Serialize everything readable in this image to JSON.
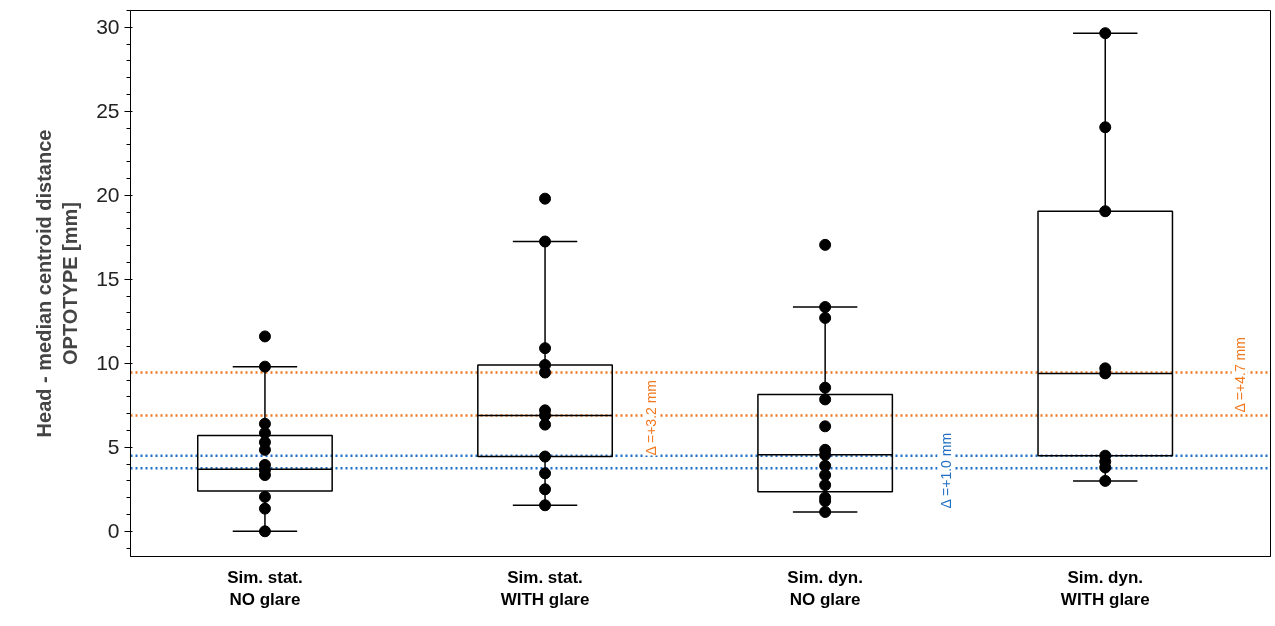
{
  "chart_data": {
    "type": "box",
    "ylabel": "Head - median centroid distance\nOPTOTYPE [mm]",
    "categories": [
      "Sim. stat.\nNO glare",
      "Sim. stat.\nWITH glare",
      "Sim. dyn.\nNO glare",
      "Sim. dyn.\nWITH glare"
    ],
    "boxes": [
      {
        "low": 0,
        "q1": 2.4,
        "median": 3.7,
        "q3": 5.7,
        "high": 9.8,
        "outliers": [
          11.6
        ]
      },
      {
        "low": 1.55,
        "q1": 4.45,
        "median": 6.9,
        "q3": 9.9,
        "high": 17.25,
        "outliers": [
          19.8
        ]
      },
      {
        "low": 1.15,
        "q1": 2.35,
        "median": 4.55,
        "q3": 8.15,
        "high": 13.35,
        "outliers": [
          17.05
        ]
      },
      {
        "low": 3.0,
        "q1": 4.5,
        "median": 9.4,
        "q3": 19.05,
        "high": 29.65
      }
    ],
    "series": [
      {
        "type": "scatter",
        "color": "#000000",
        "x": [
          "Sim. stat.\nNO glare",
          "Sim. stat.\nNO glare",
          "Sim. stat.\nNO glare",
          "Sim. stat.\nNO glare",
          "Sim. stat.\nNO glare",
          "Sim. stat.\nNO glare",
          "Sim. stat.\nNO glare",
          "Sim. stat.\nNO glare",
          "Sim. stat.\nNO glare",
          "Sim. stat.\nNO glare",
          "Sim. stat.\nNO glare"
        ],
        "values": [
          9.8,
          6.4,
          5.85,
          5.3,
          4.85,
          3.95,
          3.65,
          3.35,
          2.05,
          1.35,
          0
        ]
      },
      {
        "type": "scatter",
        "color": "#000000",
        "x": [
          "Sim. stat.\nWITH glare",
          "Sim. stat.\nWITH glare",
          "Sim. stat.\nWITH glare",
          "Sim. stat.\nWITH glare",
          "Sim. stat.\nWITH glare",
          "Sim. stat.\nWITH glare",
          "Sim. stat.\nWITH glare",
          "Sim. stat.\nWITH glare",
          "Sim. stat.\nWITH glare",
          "Sim. stat.\nWITH glare",
          "Sim. stat.\nWITH glare"
        ],
        "values": [
          17.25,
          10.9,
          9.9,
          9.45,
          7.2,
          6.9,
          6.35,
          4.45,
          3.45,
          2.5,
          1.55
        ]
      },
      {
        "type": "scatter",
        "color": "#000000",
        "x": [
          "Sim. dyn.\nNO glare",
          "Sim. dyn.\nNO glare",
          "Sim. dyn.\nNO glare",
          "Sim. dyn.\nNO glare",
          "Sim. dyn.\nNO glare",
          "Sim. dyn.\nNO glare",
          "Sim. dyn.\nNO glare",
          "Sim. dyn.\nNO glare",
          "Sim. dyn.\nNO glare",
          "Sim. dyn.\nNO glare",
          "Sim. dyn.\nNO glare",
          "Sim. dyn.\nNO glare",
          "Sim. dyn.\nNO glare"
        ],
        "values": [
          13.35,
          12.7,
          8.55,
          7.85,
          6.25,
          4.85,
          4.55,
          3.9,
          3.35,
          2.75,
          2.0,
          1.8,
          1.15
        ]
      },
      {
        "type": "scatter",
        "color": "#000000",
        "x": [
          "Sim. dyn.\nWITH glare",
          "Sim. dyn.\nWITH glare",
          "Sim. dyn.\nWITH glare",
          "Sim. dyn.\nWITH glare",
          "Sim. dyn.\nWITH glare",
          "Sim. dyn.\nWITH glare",
          "Sim. dyn.\nWITH glare",
          "Sim. dyn.\nWITH glare",
          "Sim. dyn.\nWITH glare"
        ],
        "values": [
          29.65,
          24.05,
          19.05,
          9.7,
          9.4,
          4.5,
          4.15,
          3.8,
          3.0
        ]
      }
    ],
    "ref_lines": [
      {
        "axis": "y",
        "value": 9.45,
        "color": "#f07820",
        "line_style": "dotted",
        "label": "Δ  =+4.7 mm"
      },
      {
        "axis": "y",
        "value": 6.9,
        "color": "#f07820",
        "line_style": "dotted",
        "label": "Δ  =+3.2 mm"
      },
      {
        "axis": "y",
        "value": 4.5,
        "color": "#1f6fc5",
        "line_style": "dotted"
      },
      {
        "axis": "y",
        "value": 3.75,
        "color": "#1f6fc5",
        "line_style": "dotted",
        "label": "Δ  =+1.0 mm"
      }
    ],
    "ylim": [
      -1.5,
      31
    ],
    "yticks": [
      0,
      5,
      10,
      15,
      20,
      25,
      30
    ],
    "marker": "circle",
    "grid": false
  }
}
